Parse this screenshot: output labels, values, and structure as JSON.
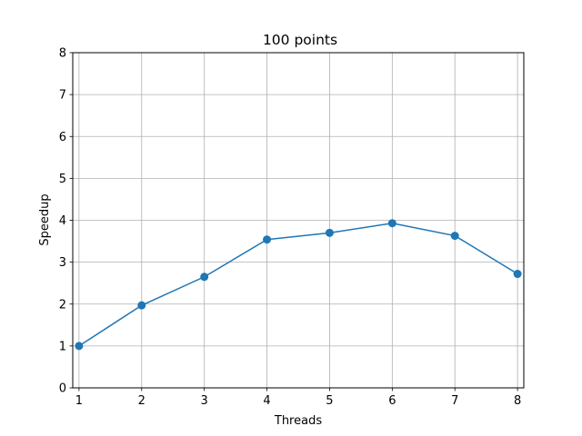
{
  "chart_data": {
    "type": "line",
    "title": "100 points",
    "xlabel": "Threads",
    "ylabel": "Speedup",
    "x": [
      1,
      2,
      3,
      4,
      5,
      6,
      7,
      8
    ],
    "series": [
      {
        "values": [
          1.0,
          1.97,
          2.65,
          3.54,
          3.7,
          3.93,
          3.63,
          2.72
        ]
      }
    ],
    "xlim": [
      0.9,
      8.1
    ],
    "ylim": [
      0,
      8
    ],
    "x_ticks": [
      "1",
      "2",
      "3",
      "4",
      "5",
      "6",
      "7",
      "8"
    ],
    "y_ticks": [
      "0",
      "1",
      "2",
      "3",
      "4",
      "5",
      "6",
      "7",
      "8"
    ],
    "grid": true,
    "marker": "circle",
    "line_color": "#1f77b4"
  }
}
